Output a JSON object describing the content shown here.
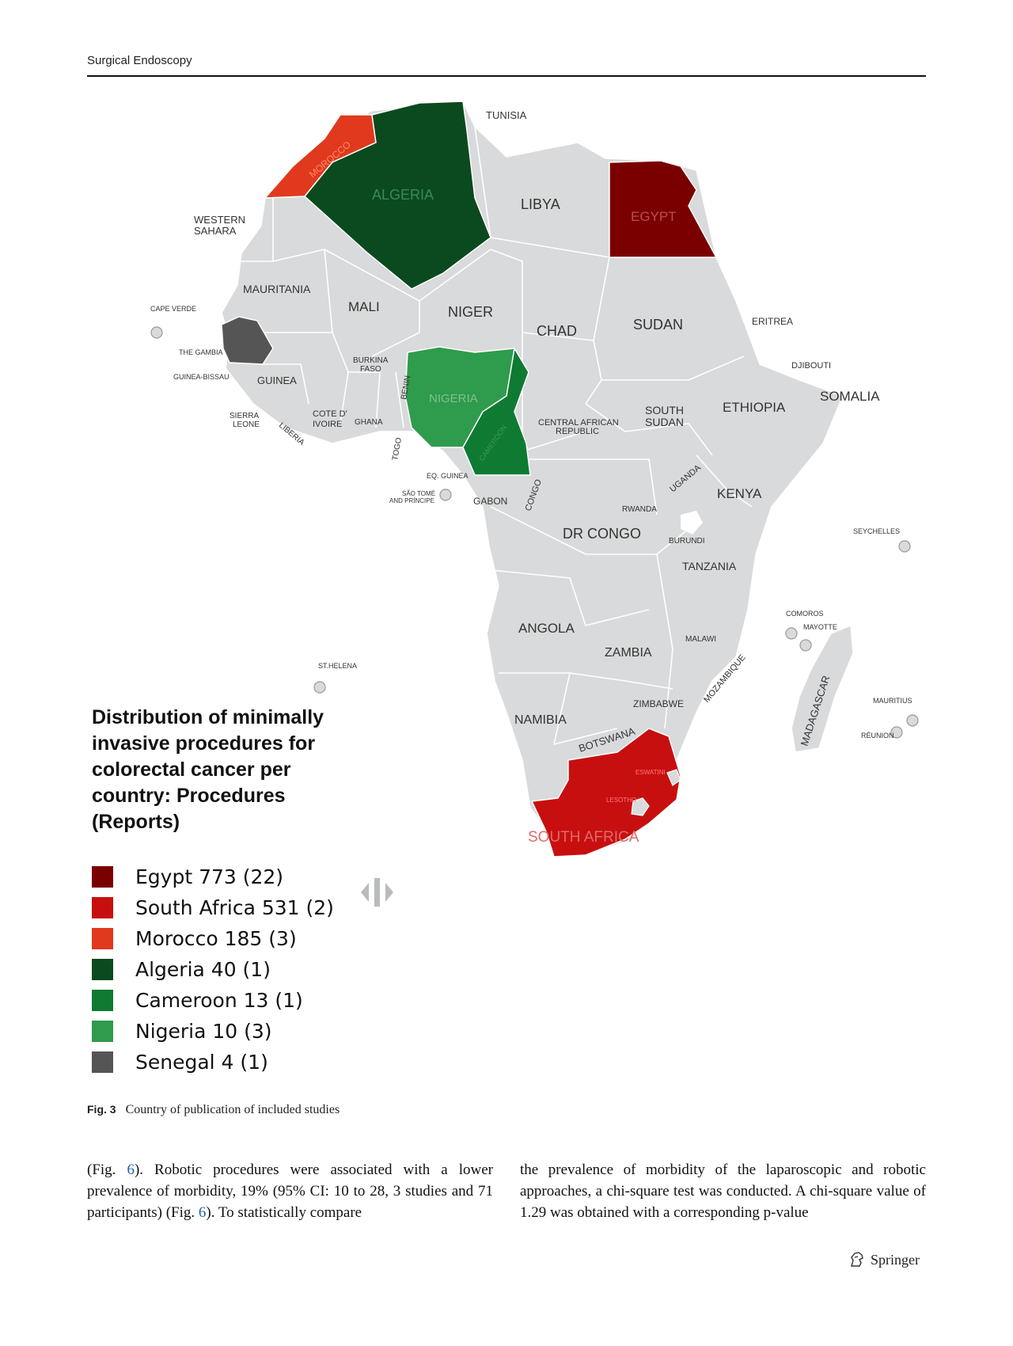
{
  "header": {
    "journal": "Surgical Endoscopy"
  },
  "map": {
    "title": "Distribution of minimally invasive procedures for colorectal cancer per country: Procedures (Reports)",
    "labels": {
      "tunisia": "TUNISIA",
      "morocco": "MOROCCO",
      "algeria": "ALGERIA",
      "libya": "LIBYA",
      "egypt": "EGYPT",
      "western_sahara_1": "WESTERN",
      "western_sahara_2": "SAHARA",
      "mauritania": "MAURITANIA",
      "mali": "MALI",
      "niger": "NIGER",
      "chad": "CHAD",
      "sudan": "SUDAN",
      "eritrea": "ERITREA",
      "cape_verde": "CAPE VERDE",
      "the_gambia": "THE GAMBIA",
      "guinea_bissau": "GUINEA-BISSAU",
      "guinea": "GUINEA",
      "burkina_1": "BURKINA",
      "burkina_2": "FASO",
      "benin": "BENIN",
      "nigeria": "NIGERIA",
      "djibouti": "DJIBOUTI",
      "somalia": "SOMALIA",
      "sierra_1": "SIERRA",
      "sierra_2": "LEONE",
      "cote_1": "COTE D'",
      "cote_2": "IVOIRE",
      "ghana": "GHANA",
      "liberia": "LIBERIA",
      "togo": "TOGO",
      "cameroon": "CAMEROON",
      "car_1": "CENTRAL AFRICAN",
      "car_2": "REPUBLIC",
      "south_sudan_1": "SOUTH",
      "south_sudan_2": "SUDAN",
      "ethiopia": "ETHIOPIA",
      "eq_guinea": "EQ. GUINEA",
      "sao_tome_1": "SÃO TOMÉ",
      "sao_tome_2": "AND PRÍNCIPE",
      "gabon": "GABON",
      "congo": "CONGO",
      "uganda": "UGANDA",
      "kenya": "KENYA",
      "rwanda": "RWANDA",
      "dr_congo": "DR CONGO",
      "burundi": "BURUNDI",
      "seychelles": "SEYCHELLES",
      "tanzania": "TANZANIA",
      "comoros": "COMOROS",
      "mayotte": "MAYOTTE",
      "angola": "ANGOLA",
      "malawi": "MALAWI",
      "zambia": "ZAMBIA",
      "st_helena": "ST.HELENA",
      "mozambique": "MOZAMBIQUE",
      "madagascar": "MADAGASCAR",
      "zimbabwe": "ZIMBABWE",
      "mauritius": "MAURITIUS",
      "namibia": "NAMIBIA",
      "reunion": "RÉUNION",
      "botswana": "BOTSWANA",
      "eswatini": "ESWATINI",
      "lesotho": "LESOTHO",
      "south_africa": "SOUTH AFRICA"
    },
    "legend": [
      {
        "label": "Egypt 773 (22)",
        "color": "#7a0000"
      },
      {
        "label": "South Africa 531 (2)",
        "color": "#c80f0f"
      },
      {
        "label": "Morocco 185 (3)",
        "color": "#e0391e"
      },
      {
        "label": "Algeria 40 (1)",
        "color": "#0a4a1e"
      },
      {
        "label": "Cameroon 13 (1)",
        "color": "#0f7a32"
      },
      {
        "label": "Nigeria 10 (3)",
        "color": "#2f9b4c"
      },
      {
        "label": "Senegal 4 (1)",
        "color": "#555555"
      }
    ],
    "base_color": "#d9dadb"
  },
  "caption": {
    "label": "Fig. 3",
    "text": "Country of publication of included studies"
  },
  "body": {
    "left_1": "(Fig. ",
    "left_ref_1": "6",
    "left_2": "). Robotic procedures were associated with a lower prevalence of morbidity, 19% (95% CI: 10 to 28, 3 studies and 71 participants) (Fig. ",
    "left_ref_2": "6",
    "left_3": "). To statistically compare",
    "right": "the prevalence of morbidity of the laparoscopic and robotic approaches, a chi-square test was conducted. A chi-square value of 1.29 was obtained with a corresponding p-value"
  },
  "footer": {
    "publisher": "Springer"
  }
}
